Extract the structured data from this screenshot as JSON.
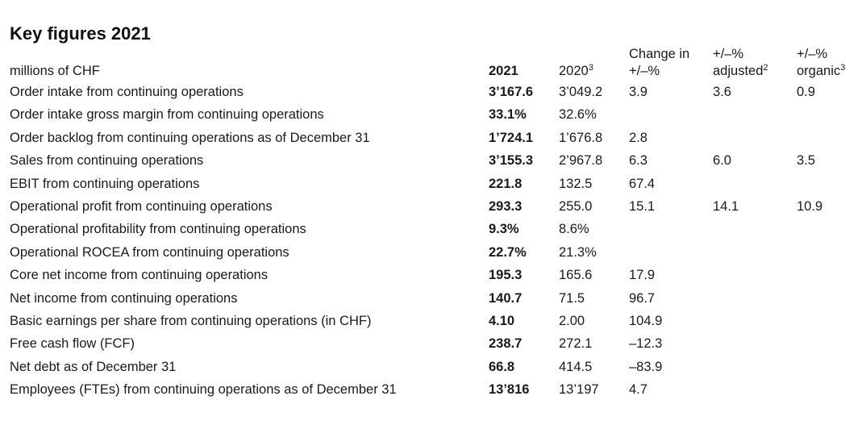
{
  "title": "Key figures 2021",
  "header": {
    "label": "millions of CHF",
    "y2021": "2021",
    "y2020": "2020",
    "y2020_sup": "3",
    "change_line1": "Change in",
    "change_line2": "+/–%",
    "adjusted_line1": "+/–%",
    "adjusted_line2": "adjusted",
    "adjusted_sup": "2",
    "organic_line1": "+/–%",
    "organic_line2": "organic",
    "organic_sup": "3"
  },
  "rows": [
    {
      "label": "Order intake from continuing operations",
      "v2021": "3’167.6",
      "v2020": "3’049.2",
      "change": "3.9",
      "adjusted": "3.6",
      "organic": "0.9"
    },
    {
      "label": "Order intake gross margin from continuing operations",
      "v2021": "33.1%",
      "v2020": "32.6%",
      "change": "",
      "adjusted": "",
      "organic": ""
    },
    {
      "label": "Order backlog from continuing operations as of December 31",
      "v2021": "1’724.1",
      "v2020": "1’676.8",
      "change": "2.8",
      "adjusted": "",
      "organic": ""
    },
    {
      "label": "Sales from continuing operations",
      "v2021": "3’155.3",
      "v2020": "2’967.8",
      "change": "6.3",
      "adjusted": "6.0",
      "organic": "3.5"
    },
    {
      "label": "EBIT from continuing operations",
      "v2021": "221.8",
      "v2020": "132.5",
      "change": "67.4",
      "adjusted": "",
      "organic": ""
    },
    {
      "label": "Operational profit from continuing operations",
      "v2021": "293.3",
      "v2020": "255.0",
      "change": "15.1",
      "adjusted": "14.1",
      "organic": "10.9"
    },
    {
      "label": "Operational profitability from continuing operations",
      "v2021": "9.3%",
      "v2020": "8.6%",
      "change": "",
      "adjusted": "",
      "organic": ""
    },
    {
      "label": "Operational ROCEA from continuing operations",
      "v2021": "22.7%",
      "v2020": "21.3%",
      "change": "",
      "adjusted": "",
      "organic": ""
    },
    {
      "label": "Core net income from continuing operations",
      "v2021": "195.3",
      "v2020": "165.6",
      "change": "17.9",
      "adjusted": "",
      "organic": ""
    },
    {
      "label": "Net income from continuing operations",
      "v2021": "140.7",
      "v2020": "71.5",
      "change": "96.7",
      "adjusted": "",
      "organic": ""
    },
    {
      "label": "Basic earnings per share from continuing operations (in CHF)",
      "v2021": "4.10",
      "v2020": "2.00",
      "change": "104.9",
      "adjusted": "",
      "organic": ""
    },
    {
      "label": "Free cash flow (FCF)",
      "v2021": "238.7",
      "v2020": "272.1",
      "change": "–12.3",
      "adjusted": "",
      "organic": ""
    },
    {
      "label": "Net debt as of December 31",
      "v2021": "66.8",
      "v2020": "414.5",
      "change": "–83.9",
      "adjusted": "",
      "organic": ""
    },
    {
      "label": "Employees (FTEs) from continuing operations as of December 31",
      "v2021": "13’816",
      "v2020": "13’197",
      "change": "4.7",
      "adjusted": "",
      "organic": ""
    }
  ]
}
